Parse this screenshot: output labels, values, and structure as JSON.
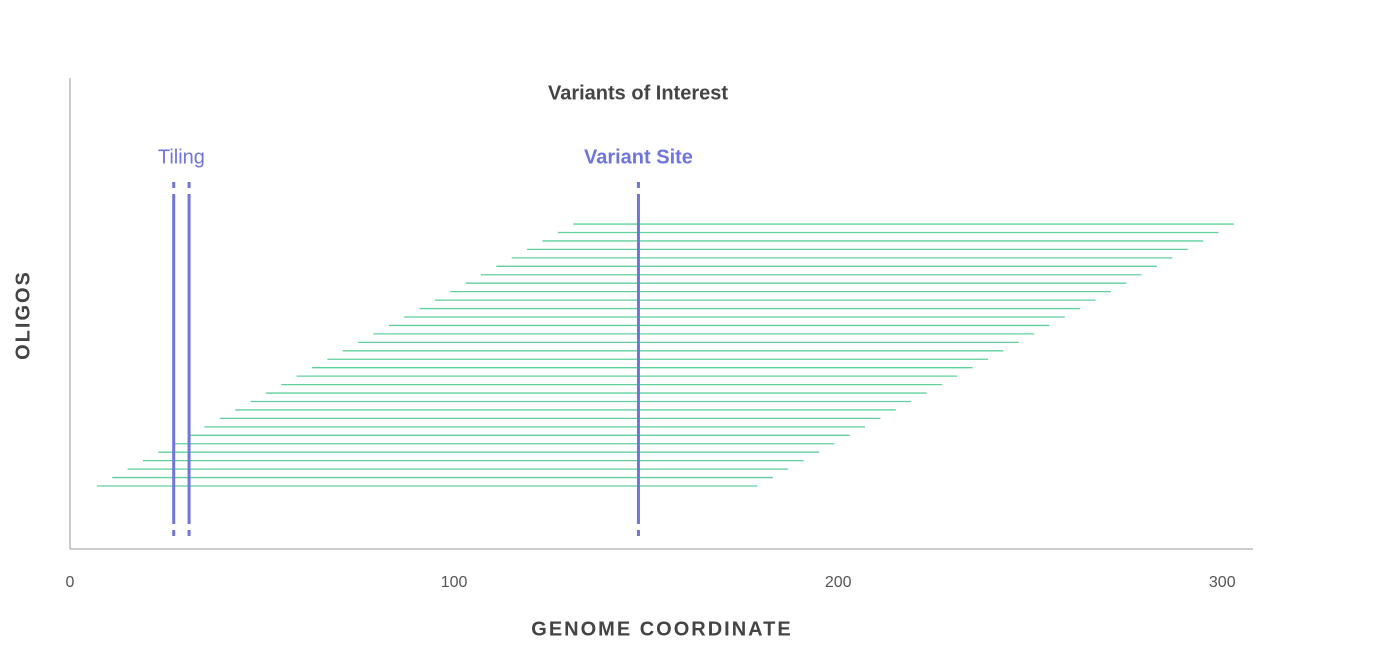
{
  "chart_data": {
    "type": "range",
    "title": "Variants of Interest",
    "xlabel": "GENOME COORDINATE",
    "ylabel": "OLIGOS",
    "xlim": [
      0,
      308
    ],
    "xticks": [
      0,
      100,
      200,
      300
    ],
    "color": "#5fd09c",
    "starts": [
      7,
      11,
      15,
      19,
      23,
      27,
      31,
      35,
      39,
      43,
      47,
      51,
      55,
      59,
      63,
      67,
      71,
      75,
      79,
      83,
      87,
      91,
      95,
      99,
      103,
      107,
      111,
      115,
      119,
      123,
      127,
      131
    ],
    "ends": [
      179,
      183,
      187,
      191,
      195,
      199,
      203,
      207,
      211,
      215,
      219,
      223,
      227,
      231,
      235,
      239,
      243,
      247,
      251,
      255,
      259,
      263,
      267,
      271,
      275,
      279,
      283,
      287,
      291,
      295,
      299,
      303
    ],
    "markers": [
      {
        "label": "Tiling",
        "positions": [
          27,
          31
        ],
        "color": "#6e76db"
      },
      {
        "label": "Variant Site",
        "positions": [
          148
        ],
        "color": "#6e76db",
        "bold": true
      }
    ]
  }
}
